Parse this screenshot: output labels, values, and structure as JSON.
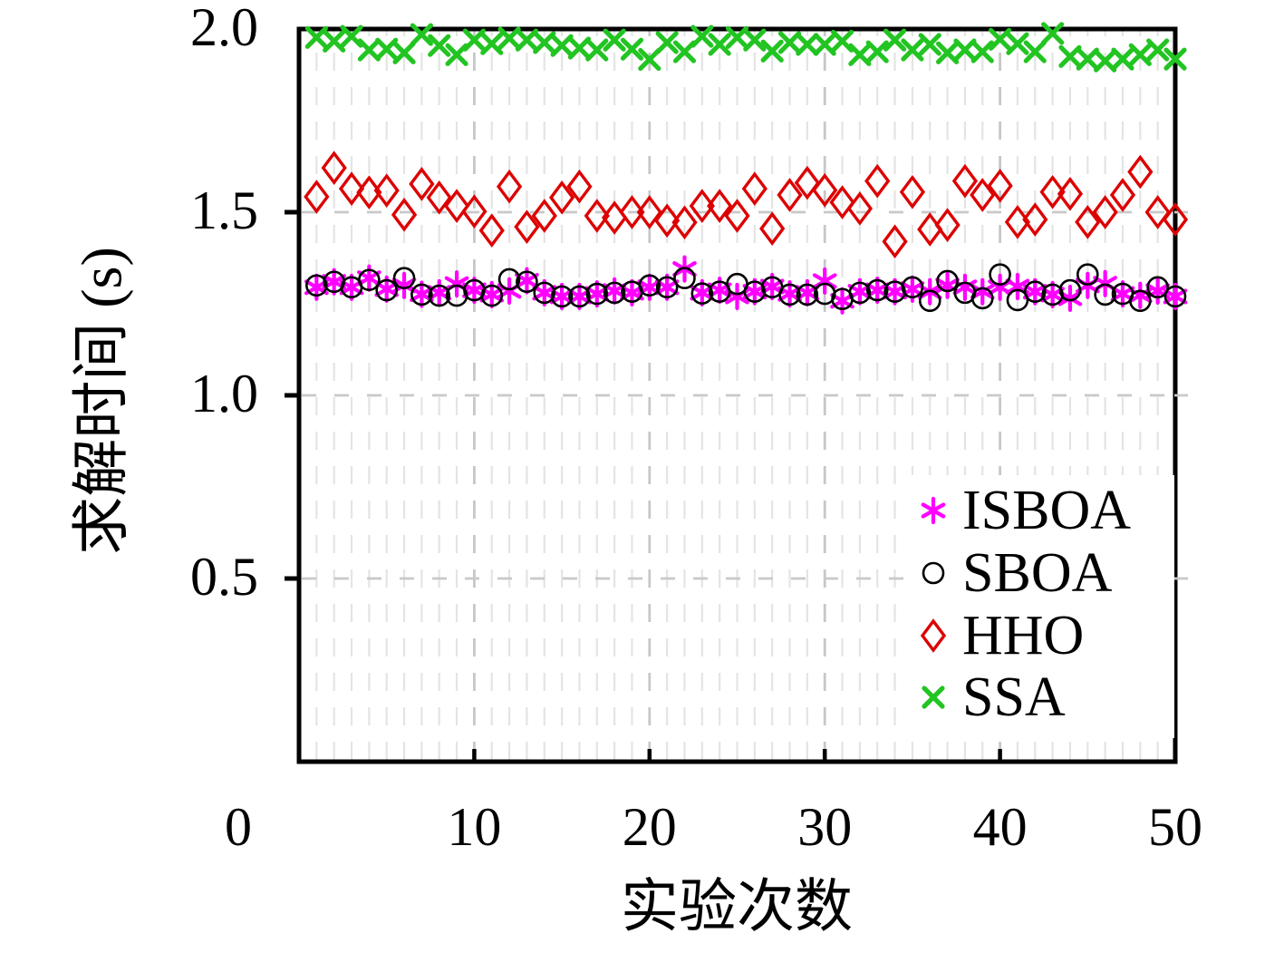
{
  "figure": {
    "background": "#ffffff"
  },
  "chart_data": {
    "type": "scatter",
    "title": "",
    "xlabel": "实验次数",
    "ylabel": "求解时间 (s)",
    "xlim": [
      0,
      50
    ],
    "ylim": [
      0,
      2
    ],
    "xticks": [
      0,
      10,
      20,
      30,
      40,
      50
    ],
    "yticks": [
      0.5,
      1.0,
      1.5,
      2.0
    ],
    "ytick_labels": [
      "0.5",
      "1.0",
      "1.5",
      "2.0"
    ],
    "grid": {
      "vertical_minor_every": 1,
      "vertical_major_every": 10,
      "horizontal_major": [
        0.5,
        1.0,
        1.5
      ],
      "style": "dashed",
      "minor_color": "#e4e4e4",
      "major_color": "#c7c7c7",
      "horizontal_color": "#c9c9c9"
    },
    "legend": {
      "position": "inside lower right",
      "background": "#ffffff",
      "entries": [
        "ISBOA",
        "SBOA",
        "HHO",
        "SSA"
      ]
    },
    "x": [
      1,
      2,
      3,
      4,
      5,
      6,
      7,
      8,
      9,
      10,
      11,
      12,
      13,
      14,
      15,
      16,
      17,
      18,
      19,
      20,
      21,
      22,
      23,
      24,
      25,
      26,
      27,
      28,
      29,
      30,
      31,
      32,
      33,
      34,
      35,
      36,
      37,
      38,
      39,
      40,
      41,
      42,
      43,
      44,
      45,
      46,
      47,
      48,
      49,
      50
    ],
    "series": [
      {
        "name": "ISBOA",
        "marker": "asterisk",
        "color": "#ff00ff",
        "values": [
          1.295,
          1.31,
          1.295,
          1.32,
          1.29,
          1.3,
          1.276,
          1.28,
          1.304,
          1.287,
          1.275,
          1.285,
          1.313,
          1.28,
          1.27,
          1.27,
          1.277,
          1.285,
          1.28,
          1.295,
          1.295,
          1.345,
          1.28,
          1.287,
          1.27,
          1.283,
          1.297,
          1.277,
          1.28,
          1.312,
          1.258,
          1.283,
          1.287,
          1.283,
          1.29,
          1.283,
          1.3,
          1.295,
          1.283,
          1.295,
          1.297,
          1.283,
          1.275,
          1.265,
          1.3,
          1.305,
          1.277,
          1.273,
          1.285,
          1.27
        ]
      },
      {
        "name": "SBOA",
        "marker": "circle",
        "color": "#000000",
        "values": [
          1.3,
          1.31,
          1.295,
          1.315,
          1.287,
          1.32,
          1.275,
          1.272,
          1.272,
          1.287,
          1.272,
          1.317,
          1.31,
          1.28,
          1.27,
          1.27,
          1.277,
          1.28,
          1.283,
          1.3,
          1.295,
          1.32,
          1.278,
          1.283,
          1.304,
          1.283,
          1.295,
          1.275,
          1.275,
          1.277,
          1.263,
          1.28,
          1.287,
          1.283,
          1.295,
          1.258,
          1.312,
          1.28,
          1.265,
          1.33,
          1.26,
          1.283,
          1.275,
          1.287,
          1.33,
          1.275,
          1.277,
          1.258,
          1.295,
          1.27
        ]
      },
      {
        "name": "HHO",
        "marker": "diamond",
        "color": "#dd0000",
        "values": [
          1.542,
          1.621,
          1.564,
          1.554,
          1.559,
          1.493,
          1.577,
          1.54,
          1.517,
          1.502,
          1.45,
          1.57,
          1.46,
          1.49,
          1.54,
          1.57,
          1.49,
          1.485,
          1.5,
          1.5,
          1.477,
          1.472,
          1.517,
          1.517,
          1.49,
          1.564,
          1.455,
          1.547,
          1.58,
          1.56,
          1.527,
          1.51,
          1.585,
          1.42,
          1.555,
          1.453,
          1.465,
          1.585,
          1.547,
          1.572,
          1.473,
          1.48,
          1.555,
          1.55,
          1.473,
          1.5,
          1.547,
          1.61,
          1.5,
          1.48
        ]
      },
      {
        "name": "SSA",
        "marker": "x",
        "color": "#22c422",
        "values": [
          1.977,
          1.967,
          1.98,
          1.943,
          1.945,
          1.935,
          1.985,
          1.955,
          1.93,
          1.97,
          1.96,
          1.975,
          1.97,
          1.963,
          1.955,
          1.948,
          1.943,
          1.97,
          1.945,
          1.917,
          1.963,
          1.938,
          1.98,
          1.958,
          1.977,
          1.97,
          1.94,
          1.963,
          1.958,
          1.958,
          1.967,
          1.93,
          1.938,
          1.97,
          1.943,
          1.958,
          1.935,
          1.943,
          1.938,
          1.972,
          1.96,
          1.938,
          1.988,
          1.925,
          1.918,
          1.913,
          1.918,
          1.93,
          1.943,
          1.918
        ]
      }
    ]
  }
}
